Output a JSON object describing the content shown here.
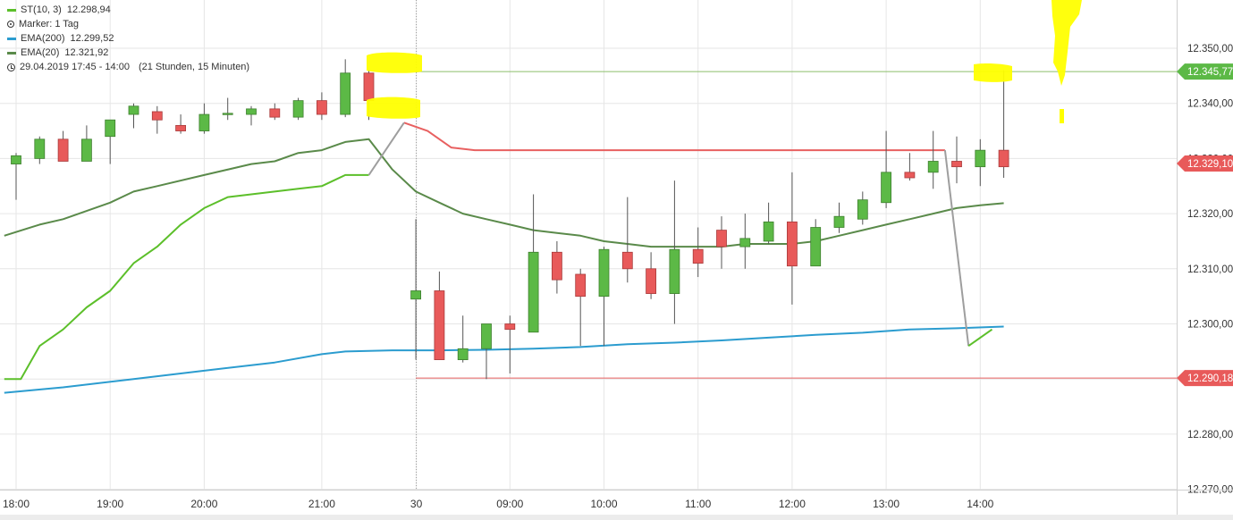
{
  "legend": {
    "st": {
      "name": "ST(10, 3)",
      "value": "12.298,94",
      "color": "#5cbf2a"
    },
    "marker": {
      "label": "Marker: 1 Tag"
    },
    "ema200": {
      "name": "EMA(200)",
      "value": "12.299,52",
      "color": "#2b9ccf"
    },
    "ema20": {
      "name": "EMA(20)",
      "value": "12.321,92",
      "color": "#5a8a4a"
    },
    "range": {
      "text": "29.04.2019 17:45 - 14:00",
      "duration": "(21 Stunden, 15 Minuten)"
    }
  },
  "colors": {
    "up": "#5cb946",
    "down": "#e85a5a",
    "highlight": "#ffff00",
    "grid": "#e6e6e6"
  },
  "chart_data": {
    "type": "candlestick",
    "x_ticks": [
      "18:00",
      "19:00",
      "20:00",
      "21:00",
      "30",
      "09:00",
      "10:00",
      "11:00",
      "12:00",
      "13:00",
      "14:00"
    ],
    "y_ticks": [
      "12.350,00",
      "12.340,00",
      "12.330,00",
      "12.320,00",
      "12.310,00",
      "12.300,00",
      "12.290,00",
      "12.280,00",
      "12.270,00"
    ],
    "ylim": [
      12267.5,
      12357.5
    ],
    "price_tags": [
      {
        "label": "12.345,77",
        "value": 12345.77,
        "color": "#5cb946"
      },
      {
        "label": "12.329,10",
        "value": 12329.1,
        "color": "#e85a5a"
      },
      {
        "label": "12.290,18",
        "value": 12290.18,
        "color": "#e85a5a"
      }
    ],
    "candles": [
      {
        "t": 0,
        "o": 12329,
        "h": 12331,
        "l": 12322.5,
        "c": 12330.5
      },
      {
        "t": 1,
        "o": 12330,
        "h": 12334,
        "l": 12329,
        "c": 12333.5
      },
      {
        "t": 2,
        "o": 12333.5,
        "h": 12335,
        "l": 12329.5,
        "c": 12329.5
      },
      {
        "t": 3,
        "o": 12329.5,
        "h": 12336,
        "l": 12329.5,
        "c": 12333.5
      },
      {
        "t": 4,
        "o": 12334,
        "h": 12337,
        "l": 12329,
        "c": 12337
      },
      {
        "t": 5,
        "o": 12338,
        "h": 12340,
        "l": 12335.5,
        "c": 12339.5
      },
      {
        "t": 6,
        "o": 12338.5,
        "h": 12339.5,
        "l": 12334.5,
        "c": 12337
      },
      {
        "t": 7,
        "o": 12336,
        "h": 12338,
        "l": 12334.5,
        "c": 12335
      },
      {
        "t": 8,
        "o": 12335,
        "h": 12340,
        "l": 12334.5,
        "c": 12338
      },
      {
        "t": 9,
        "o": 12338,
        "h": 12341,
        "l": 12337,
        "c": 12338.2
      },
      {
        "t": 10,
        "o": 12338,
        "h": 12339.5,
        "l": 12336,
        "c": 12339
      },
      {
        "t": 11,
        "o": 12339,
        "h": 12340,
        "l": 12337,
        "c": 12337.5
      },
      {
        "t": 12,
        "o": 12337.5,
        "h": 12341,
        "l": 12337,
        "c": 12340.5
      },
      {
        "t": 13,
        "o": 12340.5,
        "h": 12342,
        "l": 12337,
        "c": 12338
      },
      {
        "t": 14,
        "o": 12338,
        "h": 12348,
        "l": 12337.5,
        "c": 12345.5
      },
      {
        "t": 15,
        "o": 12345.5,
        "h": 12346,
        "l": 12337,
        "c": 12340.5
      },
      {
        "t": 17,
        "o": 12304.5,
        "h": 12319,
        "l": 12293.5,
        "c": 12306
      },
      {
        "t": 18,
        "o": 12306,
        "h": 12309.5,
        "l": 12293.5,
        "c": 12293.5
      },
      {
        "t": 19,
        "o": 12293.5,
        "h": 12301.5,
        "l": 12293,
        "c": 12295.5
      },
      {
        "t": 20,
        "o": 12295.5,
        "h": 12299.5,
        "l": 12290,
        "c": 12300
      },
      {
        "t": 21,
        "o": 12300,
        "h": 12301.5,
        "l": 12291,
        "c": 12299
      },
      {
        "t": 22,
        "o": 12298.5,
        "h": 12323.5,
        "l": 12298.5,
        "c": 12313
      },
      {
        "t": 23,
        "o": 12313,
        "h": 12315,
        "l": 12305.5,
        "c": 12308
      },
      {
        "t": 24,
        "o": 12309,
        "h": 12310,
        "l": 12296,
        "c": 12305
      },
      {
        "t": 25,
        "o": 12305,
        "h": 12314,
        "l": 12296,
        "c": 12313.5
      },
      {
        "t": 26,
        "o": 12313,
        "h": 12323,
        "l": 12307.5,
        "c": 12310
      },
      {
        "t": 27,
        "o": 12310,
        "h": 12313,
        "l": 12304.5,
        "c": 12305.5
      },
      {
        "t": 28,
        "o": 12305.5,
        "h": 12326,
        "l": 12300,
        "c": 12313.5
      },
      {
        "t": 29,
        "o": 12313.5,
        "h": 12317.5,
        "l": 12308.5,
        "c": 12311
      },
      {
        "t": 30,
        "o": 12317,
        "h": 12319.5,
        "l": 12310,
        "c": 12314
      },
      {
        "t": 31,
        "o": 12314,
        "h": 12320,
        "l": 12310,
        "c": 12315.5
      },
      {
        "t": 32,
        "o": 12315,
        "h": 12322,
        "l": 12314.5,
        "c": 12318.5
      },
      {
        "t": 33,
        "o": 12318.5,
        "h": 12327.5,
        "l": 12303.5,
        "c": 12310.5
      },
      {
        "t": 34,
        "o": 12310.5,
        "h": 12319,
        "l": 12310.5,
        "c": 12317.5
      },
      {
        "t": 35,
        "o": 12317.5,
        "h": 12322,
        "l": 12316.5,
        "c": 12319.5
      },
      {
        "t": 36,
        "o": 12319,
        "h": 12324,
        "l": 12318,
        "c": 12322.5
      },
      {
        "t": 37,
        "o": 12322,
        "h": 12335,
        "l": 12321,
        "c": 12327.5
      },
      {
        "t": 38,
        "o": 12327.5,
        "h": 12331,
        "l": 12326,
        "c": 12326.5
      },
      {
        "t": 39,
        "o": 12327.5,
        "h": 12335,
        "l": 12324.5,
        "c": 12329.5
      },
      {
        "t": 40,
        "o": 12329.5,
        "h": 12334,
        "l": 12325.5,
        "c": 12328.5
      },
      {
        "t": 41,
        "o": 12328.5,
        "h": 12333.5,
        "l": 12325,
        "c": 12331.5
      },
      {
        "t": 42,
        "o": 12331.5,
        "h": 12346,
        "l": 12326.5,
        "c": 12328.5
      }
    ],
    "series": [
      {
        "name": "EMA(20)",
        "color": "#5a8a4a",
        "points": [
          [
            -0.5,
            12316
          ],
          [
            1,
            12318
          ],
          [
            2,
            12319
          ],
          [
            4,
            12322
          ],
          [
            5,
            12324
          ],
          [
            6,
            12325
          ],
          [
            8,
            12327
          ],
          [
            10,
            12329
          ],
          [
            11,
            12329.5
          ],
          [
            12,
            12331
          ],
          [
            13,
            12331.5
          ],
          [
            14,
            12333
          ],
          [
            15,
            12333.5
          ],
          [
            16,
            12328
          ],
          [
            17,
            12324
          ],
          [
            18,
            12322
          ],
          [
            19,
            12320
          ],
          [
            20,
            12319
          ],
          [
            21,
            12318
          ],
          [
            22,
            12317
          ],
          [
            23,
            12316.5
          ],
          [
            24,
            12316
          ],
          [
            25,
            12315
          ],
          [
            26,
            12314.5
          ],
          [
            27,
            12314
          ],
          [
            28,
            12314
          ],
          [
            29,
            12314
          ],
          [
            30,
            12314
          ],
          [
            31,
            12314.5
          ],
          [
            32,
            12314.5
          ],
          [
            33,
            12314.5
          ],
          [
            34,
            12315
          ],
          [
            35,
            12316
          ],
          [
            36,
            12317
          ],
          [
            37,
            12318
          ],
          [
            38,
            12319
          ],
          [
            39,
            12320
          ],
          [
            40,
            12321
          ],
          [
            41,
            12321.5
          ],
          [
            42,
            12321.9
          ]
        ]
      },
      {
        "name": "EMA(200)",
        "color": "#2b9ccf",
        "points": [
          [
            -0.5,
            12287.5
          ],
          [
            2,
            12288.5
          ],
          [
            5,
            12290
          ],
          [
            8,
            12291.5
          ],
          [
            11,
            12293
          ],
          [
            13,
            12294.5
          ],
          [
            14,
            12295
          ],
          [
            16,
            12295.2
          ],
          [
            18,
            12295.2
          ],
          [
            20,
            12295.3
          ],
          [
            22,
            12295.5
          ],
          [
            24,
            12295.8
          ],
          [
            26,
            12296.3
          ],
          [
            28,
            12296.6
          ],
          [
            30,
            12297
          ],
          [
            32,
            12297.5
          ],
          [
            34,
            12298
          ],
          [
            36,
            12298.4
          ],
          [
            38,
            12299
          ],
          [
            40,
            12299.2
          ],
          [
            42,
            12299.52
          ]
        ]
      },
      {
        "name": "ST(10, 3)",
        "color": "#5cbf2a",
        "points": [
          [
            -0.5,
            12290
          ],
          [
            0.2,
            12290
          ],
          [
            1,
            12296
          ],
          [
            2,
            12299
          ],
          [
            3,
            12303
          ],
          [
            4,
            12306
          ],
          [
            5,
            12311
          ],
          [
            6,
            12314
          ],
          [
            7,
            12318
          ],
          [
            8,
            12321
          ],
          [
            9,
            12323
          ],
          [
            10,
            12323.5
          ],
          [
            11,
            12324
          ],
          [
            12,
            12324.5
          ],
          [
            13,
            12325
          ],
          [
            14,
            12327
          ],
          [
            15,
            12327
          ]
        ]
      },
      {
        "name": "",
        "color": "#e86060",
        "points": [
          [
            16.5,
            12336.5
          ],
          [
            17.5,
            12335
          ],
          [
            18.5,
            12332
          ],
          [
            19.5,
            12331.5
          ],
          [
            39.5,
            12331.5
          ]
        ]
      },
      {
        "name": "",
        "color": "#9e9e9e",
        "points": [
          [
            15,
            12327
          ],
          [
            16.5,
            12336.5
          ]
        ]
      },
      {
        "name": "",
        "color": "#9e9e9e",
        "points": [
          [
            39.5,
            12331.5
          ],
          [
            40.5,
            12296
          ]
        ]
      },
      {
        "name": "",
        "color": "#5cbf2a",
        "points": [
          [
            40.5,
            12296
          ],
          [
            41.5,
            12299
          ]
        ]
      }
    ]
  }
}
